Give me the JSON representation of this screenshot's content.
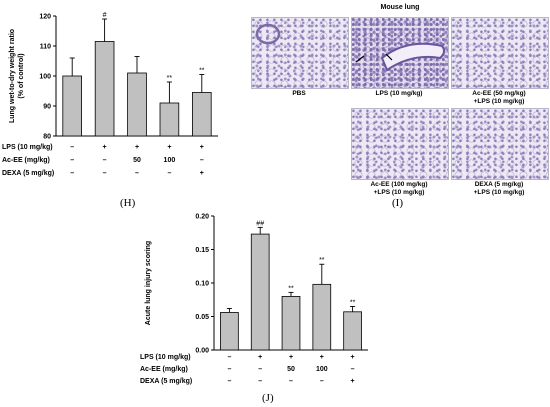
{
  "panel_h": {
    "letter": "(H)",
    "chart_data": {
      "type": "bar",
      "ylabel": "Lung wet-to-dry weight ratio\n(% of control)",
      "ylim": [
        80,
        120
      ],
      "yticks": [
        80,
        90,
        100,
        110,
        120
      ],
      "values": [
        100,
        111.5,
        101,
        91,
        94.5
      ],
      "errors": [
        6,
        7.5,
        5.5,
        7,
        6
      ],
      "significance": [
        "",
        "#",
        "",
        "**",
        "**"
      ],
      "treatment_rows": [
        {
          "label": "LPS (10 mg/kg)",
          "cells": [
            "–",
            "+",
            "+",
            "+",
            "+"
          ]
        },
        {
          "label": "Ac-EE (mg/kg)",
          "cells": [
            "–",
            "–",
            "50",
            "100",
            "–"
          ]
        },
        {
          "label": "DEXA (5 mg/kg)",
          "cells": [
            "–",
            "–",
            "–",
            "–",
            "+"
          ]
        }
      ],
      "bar_color": "#c0c0c0"
    }
  },
  "panel_i": {
    "letter": "(I)",
    "title": "Mouse lung",
    "images": [
      {
        "label": "PBS"
      },
      {
        "label": "LPS (10 mg/kg)"
      },
      {
        "label": "Ac-EE (50 mg/kg)\n+LPS (10 mg/kg)"
      },
      {
        "label": "Ac-EE (100 mg/kg)\n+LPS (10 mg/kg)"
      },
      {
        "label": "DEXA (5 mg/kg)\n+LPS (10 mg/kg)"
      }
    ]
  },
  "panel_j": {
    "letter": "(J)",
    "chart_data": {
      "type": "bar",
      "ylabel": "Acute lung injury scoring",
      "ylim": [
        0,
        0.2
      ],
      "yticks": [
        "0.00",
        "0.05",
        "0.10",
        "0.15",
        "0.20"
      ],
      "values": [
        0.056,
        0.173,
        0.08,
        0.098,
        0.057
      ],
      "errors": [
        0.006,
        0.01,
        0.006,
        0.03,
        0.008
      ],
      "significance": [
        "",
        "##",
        "**",
        "**",
        "**"
      ],
      "treatment_rows": [
        {
          "label": "LPS (10 mg/kg)",
          "cells": [
            "–",
            "+",
            "+",
            "+",
            "+"
          ]
        },
        {
          "label": "Ac-EE (mg/kg)",
          "cells": [
            "–",
            "–",
            "50",
            "100",
            "–"
          ]
        },
        {
          "label": "DEXA (5 mg/kg)",
          "cells": [
            "–",
            "–",
            "–",
            "–",
            "+"
          ]
        }
      ],
      "bar_color": "#c0c0c0"
    }
  }
}
